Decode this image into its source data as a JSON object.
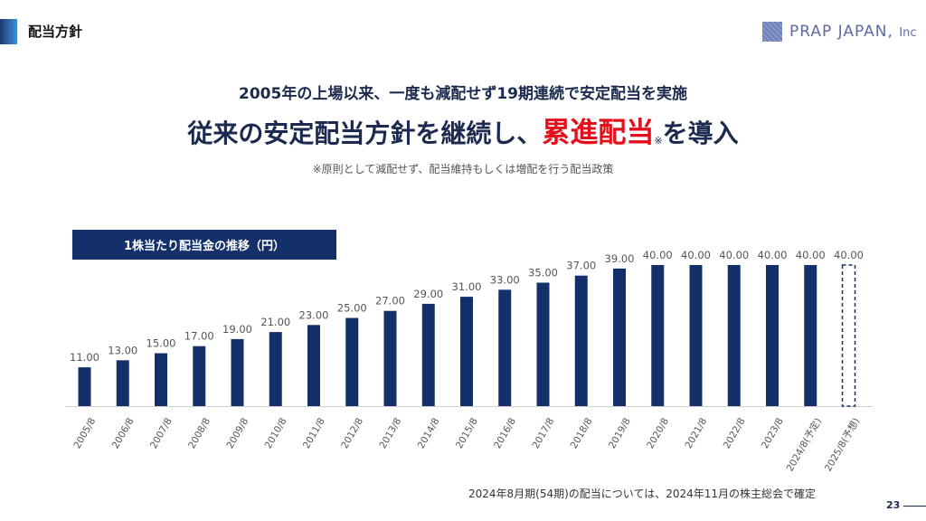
{
  "header": {
    "title": "配当方針",
    "logo_text": "PRAP JAPAN",
    "logo_suffix": "Inc"
  },
  "headline": {
    "subtitle": "2005年の上場以来、一度も減配せず19期連続で安定配当を実施",
    "main_prefix": "従来の安定配当方針を継続し、",
    "main_highlight": "累進配当",
    "main_note_mark": "※",
    "main_suffix": "を導入",
    "note": "※原則として減配せず、配当維持もしくは増配を行う配当政策"
  },
  "chart_label": "1株当たり配当金の推移（円）",
  "chart_data": {
    "type": "bar",
    "categories": [
      "2005/8",
      "2006/8",
      "2007/8",
      "2008/8",
      "2009/8",
      "2010/8",
      "2011/8",
      "2012/8",
      "2013/8",
      "2014/8",
      "2015/8",
      "2016/8",
      "2017/8",
      "2018/8",
      "2019/8",
      "2020/8",
      "2021/8",
      "2022/8",
      "2023/8",
      "2024/8(予定)",
      "2025/8(予想)"
    ],
    "values": [
      11,
      13,
      15,
      17,
      19,
      21,
      23,
      25,
      27,
      29,
      31,
      33,
      35,
      37,
      39,
      40,
      40,
      40,
      40,
      40,
      40
    ],
    "value_labels": [
      "11.00",
      "13.00",
      "15.00",
      "17.00",
      "19.00",
      "21.00",
      "23.00",
      "25.00",
      "27.00",
      "29.00",
      "31.00",
      "33.00",
      "35.00",
      "37.00",
      "39.00",
      "40.00",
      "40.00",
      "40.00",
      "40.00",
      "40.00",
      "40.00"
    ],
    "forecast_index": 20,
    "ylim": [
      0,
      40
    ],
    "grid": false,
    "colors": {
      "bar": "#13306a",
      "forecast_outline": "#13306a",
      "label": "#555555"
    }
  },
  "footnote": "2024年8月期(54期)の配当については、2024年11月の株主総会で確定",
  "page_number": "23"
}
